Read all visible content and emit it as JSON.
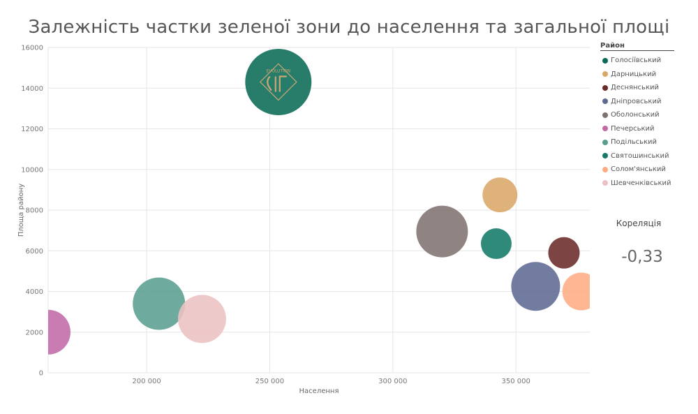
{
  "title": "Залежність частки зеленої зони до населення та загальної площі",
  "legend": {
    "title": "Район"
  },
  "correlation": {
    "label": "Кореляція",
    "value": "-0,33"
  },
  "chart_data": {
    "type": "scatter",
    "xlabel": "Населення",
    "ylabel": "Площа району",
    "xlim": [
      160000,
      380000
    ],
    "ylim": [
      0,
      16000
    ],
    "xticks": [
      200000,
      250000,
      300000,
      350000
    ],
    "xtick_labels": [
      "200 000",
      "250 000",
      "300 000",
      "350 000"
    ],
    "yticks": [
      0,
      2000,
      4000,
      6000,
      8000,
      10000,
      12000,
      14000,
      16000
    ],
    "ytick_labels": [
      "0",
      "2000",
      "4000",
      "6000",
      "8000",
      "10000",
      "12000",
      "14000",
      "16000"
    ],
    "grid": true,
    "legend_position": "right",
    "series": [
      {
        "name": "Голосіївський",
        "x": 253500,
        "y": 14300,
        "size": 95,
        "color": "#0a6a55"
      },
      {
        "name": "Дарницький",
        "x": 343500,
        "y": 8750,
        "size": 50,
        "color": "#d9a768"
      },
      {
        "name": "Деснянський",
        "x": 369500,
        "y": 5900,
        "size": 45,
        "color": "#6b2a2a"
      },
      {
        "name": "Дніпровський",
        "x": 358000,
        "y": 4250,
        "size": 70,
        "color": "#5d6a93"
      },
      {
        "name": "Оболонський",
        "x": 320000,
        "y": 6950,
        "size": 74,
        "color": "#7f7371"
      },
      {
        "name": "Печерський",
        "x": 160000,
        "y": 2000,
        "size": 64,
        "color": "#c16aa6"
      },
      {
        "name": "Подільський",
        "x": 205000,
        "y": 3400,
        "size": 75,
        "color": "#5a9e8f"
      },
      {
        "name": "Святошинський",
        "x": 342000,
        "y": 6350,
        "size": 44,
        "color": "#137a68"
      },
      {
        "name": "Солом'янський",
        "x": 376500,
        "y": 4000,
        "size": 54,
        "color": "#ffac84"
      },
      {
        "name": "Шевченківський",
        "x": 222500,
        "y": 2650,
        "size": 69,
        "color": "#ecc1c3"
      }
    ],
    "annotations": [
      {
        "text": "EVOLUTION",
        "on_series": "Голосіївський"
      }
    ]
  }
}
